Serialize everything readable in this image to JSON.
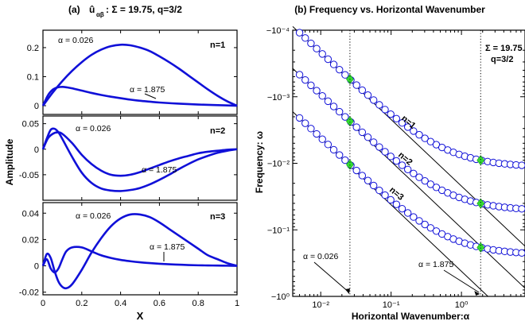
{
  "chart_data": [
    {
      "panel_title": "(a)",
      "title_main": "û",
      "title_sub": "αβ",
      "title_rest": ": Σ = 19.75, q=3/2",
      "type": "line",
      "xlabel": "X",
      "ylabel": "Amplitude",
      "xlim": [
        0,
        1
      ],
      "xticks": [
        "0",
        "0.2",
        "0.4",
        "0.6",
        "0.8",
        "1"
      ],
      "subplots": [
        {
          "mode_label": "n=1",
          "ylim": [
            -0.03,
            0.26
          ],
          "yticks": [
            0,
            0.1,
            0.2
          ],
          "ytick_labels": [
            "0",
            "0.1",
            "0.2"
          ],
          "series": [
            {
              "label": "α = 0.026",
              "x": [
                0,
                0.05,
                0.1,
                0.15,
                0.2,
                0.25,
                0.3,
                0.35,
                0.4,
                0.45,
                0.5,
                0.55,
                0.6,
                0.65,
                0.7,
                0.75,
                0.8,
                0.85,
                0.9,
                0.95,
                1
              ],
              "y": [
                0,
                0.045,
                0.085,
                0.12,
                0.15,
                0.175,
                0.193,
                0.205,
                0.21,
                0.208,
                0.2,
                0.188,
                0.17,
                0.15,
                0.128,
                0.104,
                0.08,
                0.056,
                0.034,
                0.015,
                0
              ]
            },
            {
              "label": "α = 1.875",
              "x": [
                0,
                0.025,
                0.05,
                0.075,
                0.1,
                0.125,
                0.15,
                0.2,
                0.25,
                0.3,
                0.35,
                0.4,
                0.45,
                0.5,
                0.55,
                0.6,
                0.7,
                0.8,
                0.9,
                1
              ],
              "y": [
                0,
                0.035,
                0.055,
                0.063,
                0.065,
                0.063,
                0.06,
                0.052,
                0.044,
                0.037,
                0.031,
                0.026,
                0.021,
                0.017,
                0.014,
                0.011,
                0.007,
                0.004,
                0.002,
                0
              ]
            }
          ]
        },
        {
          "mode_label": "n=2",
          "ylim": [
            -0.1,
            0.065
          ],
          "yticks": [
            -0.05,
            0,
            0.05
          ],
          "ytick_labels": [
            "-0.05",
            "0",
            "0.05"
          ],
          "series": [
            {
              "label": "α = 0.026",
              "x": [
                0,
                0.025,
                0.05,
                0.075,
                0.1,
                0.15,
                0.2,
                0.25,
                0.3,
                0.35,
                0.4,
                0.45,
                0.5,
                0.55,
                0.6,
                0.65,
                0.7,
                0.75,
                0.8,
                0.85,
                0.9,
                0.95,
                1
              ],
              "y": [
                0,
                0.021,
                0.03,
                0.033,
                0.03,
                0.012,
                -0.011,
                -0.029,
                -0.042,
                -0.05,
                -0.052,
                -0.05,
                -0.045,
                -0.038,
                -0.031,
                -0.024,
                -0.018,
                -0.013,
                -0.008,
                -0.005,
                -0.003,
                -0.001,
                0
              ]
            },
            {
              "label": "α = 1.875",
              "x": [
                0,
                0.02,
                0.04,
                0.06,
                0.08,
                0.1,
                0.15,
                0.2,
                0.25,
                0.3,
                0.35,
                0.4,
                0.45,
                0.5,
                0.55,
                0.6,
                0.65,
                0.7,
                0.75,
                0.8,
                0.85,
                0.9,
                0.95,
                1
              ],
              "y": [
                0,
                0.021,
                0.038,
                0.04,
                0.033,
                0.02,
                -0.015,
                -0.046,
                -0.066,
                -0.077,
                -0.081,
                -0.082,
                -0.08,
                -0.076,
                -0.069,
                -0.06,
                -0.05,
                -0.039,
                -0.029,
                -0.02,
                -0.013,
                -0.007,
                -0.003,
                0
              ]
            }
          ]
        },
        {
          "mode_label": "n=3",
          "ylim": [
            -0.022,
            0.048
          ],
          "yticks": [
            -0.02,
            0,
            0.02,
            0.04
          ],
          "ytick_labels": [
            "-0.02",
            "0",
            "0.02",
            "0.04"
          ],
          "series": [
            {
              "label": "α = 0.026",
              "x": [
                0,
                0.02,
                0.04,
                0.06,
                0.08,
                0.1,
                0.12,
                0.15,
                0.2,
                0.25,
                0.3,
                0.35,
                0.4,
                0.45,
                0.5,
                0.55,
                0.6,
                0.65,
                0.7,
                0.75,
                0.8,
                0.85,
                0.9,
                0.95,
                1
              ],
              "y": [
                0,
                0.009,
                0.006,
                -0.004,
                -0.012,
                -0.016,
                -0.017,
                -0.014,
                -0.003,
                0.01,
                0.021,
                0.03,
                0.036,
                0.039,
                0.039,
                0.037,
                0.033,
                0.028,
                0.023,
                0.018,
                0.013,
                0.008,
                0.005,
                0.002,
                0
              ]
            },
            {
              "label": "α = 1.875",
              "x": [
                0,
                0.02,
                0.04,
                0.06,
                0.08,
                0.1,
                0.12,
                0.15,
                0.2,
                0.25,
                0.3,
                0.35,
                0.4,
                0.45,
                0.5,
                0.55,
                0.6,
                0.65,
                0.7,
                0.75,
                0.8,
                0.85,
                0.9,
                0.95,
                1
              ],
              "y": [
                0,
                0.005,
                -0.002,
                -0.005,
                -0.002,
                0.005,
                0.011,
                0.014,
                0.014,
                0.011,
                0.008,
                0.006,
                0.0045,
                0.0035,
                0.0027,
                0.0021,
                0.0016,
                0.0012,
                0.0009,
                0.0006,
                0.0004,
                0.0003,
                0.0002,
                0.0001,
                0
              ]
            }
          ]
        }
      ]
    },
    {
      "panel_title": "(b) Frequency vs. Horizontal Wavenumber",
      "type": "scatter",
      "xlabel": "Horizontal Wavenumber:α",
      "ylabel": "Frequency: ω",
      "x_scale": "log",
      "y_scale": "log",
      "y_axis_direction": "increasing downward",
      "xlim": [
        0.004,
        8
      ],
      "ylim": [
        0.0001,
        1
      ],
      "xtick_labels": [
        "10⁻²",
        "10⁻¹",
        "10⁰"
      ],
      "xtick_values": [
        0.01,
        0.1,
        1
      ],
      "ytick_labels": [
        "−10⁻⁴",
        "−10⁻³",
        "−10⁻²",
        "−10⁻¹",
        "−10⁰"
      ],
      "ytick_values": [
        0.0001,
        0.001,
        0.01,
        0.1,
        1
      ],
      "annotation": [
        "Σ = 19.75",
        "q=3/2"
      ],
      "vertical_markers": [
        {
          "x": 0.026,
          "label": "α = 0.026"
        },
        {
          "x": 1.875,
          "label": "α = 1.875"
        }
      ],
      "series": [
        {
          "name": "n=1",
          "start_x": 0.005,
          "start_y": 0.00011,
          "plateau_y": 0.0115,
          "marker_color": "#1010d8"
        },
        {
          "name": "n=2",
          "start_x": 0.005,
          "start_y": 0.00047,
          "plateau_y": 0.052,
          "marker_color": "#1010d8"
        },
        {
          "name": "n=3",
          "start_x": 0.005,
          "start_y": 0.0021,
          "plateau_y": 0.24,
          "marker_color": "#1010d8"
        }
      ],
      "highlight_color": "#33dd33",
      "highlights_note": "green diamonds at α = 0.026 and α = 1.875 on each branch"
    }
  ]
}
